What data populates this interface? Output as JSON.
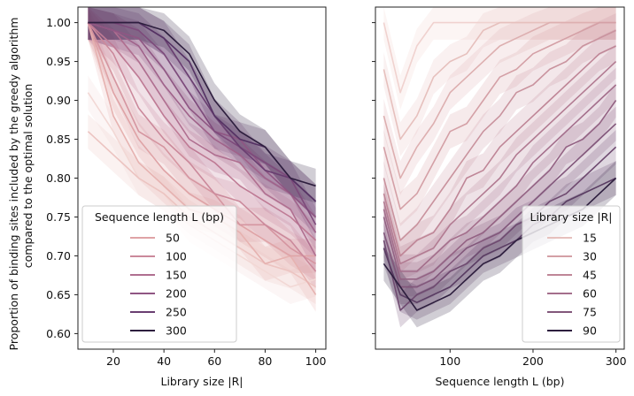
{
  "y_label_lines": [
    "Proportion of binding sites included by the greedy algorithm",
    "compared to the optimal solution"
  ],
  "chart_data": [
    {
      "type": "line",
      "panel": "left",
      "xlabel": "Library size |R|",
      "ylabel": "Proportion of binding sites included by the greedy algorithm compared to the optimal solution",
      "xlim": [
        6,
        104
      ],
      "ylim": [
        0.58,
        1.02
      ],
      "x_ticks": [
        20,
        40,
        60,
        80,
        100
      ],
      "y_ticks": [
        0.6,
        0.65,
        0.7,
        0.75,
        0.8,
        0.85,
        0.9,
        0.95,
        1.0
      ],
      "x": [
        10,
        20,
        30,
        40,
        50,
        60,
        70,
        80,
        90,
        100
      ],
      "legend": {
        "title": "Sequence length L (bp)",
        "placement": "lower-left"
      },
      "band_halfwidth": 0.022,
      "series": [
        {
          "name": "",
          "color": "#f2d8d5",
          "values": [
            0.91,
            0.86,
            0.8,
            0.78,
            0.74,
            0.72,
            0.7,
            0.68,
            0.66,
            0.67
          ]
        },
        {
          "name": "",
          "color": "#ecc4c1",
          "values": [
            0.86,
            0.83,
            0.8,
            0.78,
            0.75,
            0.73,
            0.71,
            0.69,
            0.68,
            0.66
          ]
        },
        {
          "name": "",
          "color": "#e6b2b0",
          "values": [
            1.0,
            0.88,
            0.82,
            0.79,
            0.76,
            0.75,
            0.73,
            0.69,
            0.7,
            0.65
          ]
        },
        {
          "name": "50",
          "color": "#dfa3a6",
          "values": [
            1.0,
            0.91,
            0.85,
            0.81,
            0.78,
            0.76,
            0.74,
            0.72,
            0.7,
            0.7
          ]
        },
        {
          "name": "",
          "color": "#d595a0",
          "values": [
            1.0,
            0.93,
            0.86,
            0.84,
            0.8,
            0.78,
            0.74,
            0.74,
            0.71,
            0.69
          ]
        },
        {
          "name": "100",
          "color": "#cb899b",
          "values": [
            1.0,
            0.96,
            0.89,
            0.85,
            0.82,
            0.78,
            0.77,
            0.74,
            0.72,
            0.68
          ]
        },
        {
          "name": "",
          "color": "#bf7b95",
          "values": [
            1.0,
            0.97,
            0.93,
            0.88,
            0.84,
            0.82,
            0.79,
            0.77,
            0.75,
            0.72
          ]
        },
        {
          "name": "150",
          "color": "#b06f90",
          "values": [
            1.0,
            0.99,
            0.95,
            0.9,
            0.85,
            0.83,
            0.82,
            0.78,
            0.76,
            0.7
          ]
        },
        {
          "name": "",
          "color": "#a0628a",
          "values": [
            1.0,
            0.99,
            0.97,
            0.92,
            0.88,
            0.85,
            0.83,
            0.8,
            0.78,
            0.73
          ]
        },
        {
          "name": "200",
          "color": "#8f5683",
          "values": [
            1.0,
            0.99,
            0.98,
            0.94,
            0.89,
            0.86,
            0.85,
            0.81,
            0.78,
            0.75
          ]
        },
        {
          "name": "",
          "color": "#7d4a7b",
          "values": [
            1.0,
            1.0,
            0.99,
            0.96,
            0.91,
            0.86,
            0.84,
            0.82,
            0.8,
            0.74
          ]
        },
        {
          "name": "250",
          "color": "#6a3e71",
          "values": [
            1.0,
            1.0,
            1.0,
            0.98,
            0.93,
            0.88,
            0.84,
            0.81,
            0.8,
            0.77
          ]
        },
        {
          "name": "",
          "color": "#553264",
          "values": [
            1.0,
            1.0,
            1.0,
            0.98,
            0.95,
            0.88,
            0.85,
            0.84,
            0.8,
            0.77
          ]
        },
        {
          "name": "300",
          "color": "#2d1e3e",
          "values": [
            1.0,
            1.0,
            1.0,
            0.99,
            0.96,
            0.9,
            0.86,
            0.84,
            0.8,
            0.79
          ]
        }
      ],
      "legend_entries": [
        {
          "label": "50",
          "color": "#dfa3a6"
        },
        {
          "label": "100",
          "color": "#cb899b"
        },
        {
          "label": "150",
          "color": "#b06f90"
        },
        {
          "label": "200",
          "color": "#8f5683"
        },
        {
          "label": "250",
          "color": "#6a3e71"
        },
        {
          "label": "300",
          "color": "#2d1e3e"
        }
      ]
    },
    {
      "type": "line",
      "panel": "right",
      "xlabel": "Sequence length L (bp)",
      "ylabel": "",
      "xlim": [
        10,
        310
      ],
      "ylim": [
        0.58,
        1.02
      ],
      "x_ticks": [
        100,
        200,
        300
      ],
      "y_ticks": [
        0.6,
        0.65,
        0.7,
        0.75,
        0.8,
        0.85,
        0.9,
        0.95,
        1.0
      ],
      "x": [
        20,
        40,
        60,
        80,
        100,
        120,
        140,
        160,
        180,
        200,
        220,
        240,
        260,
        280,
        300
      ],
      "legend": {
        "title": "Library size |R|",
        "placement": "lower-right"
      },
      "band_halfwidth": 0.022,
      "series": [
        {
          "name": "",
          "color": "#f0d2cf",
          "values": [
            1.0,
            0.91,
            0.97,
            1.0,
            1.0,
            1.0,
            1.0,
            1.0,
            1.0,
            1.0,
            1.0,
            1.0,
            1.0,
            1.0,
            1.0
          ]
        },
        {
          "name": "15",
          "color": "#e6c0bd",
          "values": [
            0.94,
            0.85,
            0.88,
            0.93,
            0.95,
            0.96,
            0.99,
            1.0,
            1.0,
            1.0,
            1.0,
            1.0,
            1.0,
            1.0,
            1.0
          ]
        },
        {
          "name": "",
          "color": "#ddafb0",
          "values": [
            0.88,
            0.8,
            0.84,
            0.87,
            0.91,
            0.93,
            0.95,
            0.97,
            0.98,
            0.99,
            1.0,
            1.0,
            1.0,
            1.0,
            1.0
          ]
        },
        {
          "name": "30",
          "color": "#d4a0a6",
          "values": [
            0.84,
            0.76,
            0.78,
            0.82,
            0.86,
            0.87,
            0.9,
            0.93,
            0.94,
            0.96,
            0.97,
            0.98,
            0.99,
            1.0,
            1.0
          ]
        },
        {
          "name": "",
          "color": "#c9939e",
          "values": [
            0.8,
            0.72,
            0.74,
            0.77,
            0.8,
            0.83,
            0.86,
            0.88,
            0.91,
            0.92,
            0.94,
            0.95,
            0.97,
            0.98,
            0.99
          ]
        },
        {
          "name": "45",
          "color": "#bf8697",
          "values": [
            0.78,
            0.7,
            0.72,
            0.73,
            0.76,
            0.8,
            0.81,
            0.84,
            0.86,
            0.88,
            0.9,
            0.92,
            0.94,
            0.96,
            0.97
          ]
        },
        {
          "name": "",
          "color": "#b27b92",
          "values": [
            0.77,
            0.69,
            0.7,
            0.71,
            0.74,
            0.76,
            0.78,
            0.8,
            0.83,
            0.85,
            0.87,
            0.89,
            0.91,
            0.93,
            0.95
          ]
        },
        {
          "name": "60",
          "color": "#a46f8c",
          "values": [
            0.76,
            0.68,
            0.68,
            0.7,
            0.72,
            0.73,
            0.75,
            0.77,
            0.79,
            0.82,
            0.84,
            0.86,
            0.88,
            0.9,
            0.92
          ]
        },
        {
          "name": "",
          "color": "#946384",
          "values": [
            0.75,
            0.67,
            0.67,
            0.68,
            0.7,
            0.72,
            0.73,
            0.75,
            0.77,
            0.79,
            0.81,
            0.84,
            0.85,
            0.87,
            0.9
          ]
        },
        {
          "name": "75",
          "color": "#82577b",
          "values": [
            0.73,
            0.66,
            0.66,
            0.67,
            0.69,
            0.71,
            0.72,
            0.73,
            0.75,
            0.77,
            0.79,
            0.81,
            0.83,
            0.85,
            0.87
          ]
        },
        {
          "name": "",
          "color": "#6f4a70",
          "values": [
            0.72,
            0.63,
            0.65,
            0.66,
            0.68,
            0.69,
            0.71,
            0.72,
            0.74,
            0.75,
            0.77,
            0.78,
            0.8,
            0.82,
            0.84
          ]
        },
        {
          "name": "",
          "color": "#5a3d63",
          "values": [
            0.71,
            0.65,
            0.64,
            0.65,
            0.66,
            0.68,
            0.7,
            0.71,
            0.72,
            0.74,
            0.75,
            0.77,
            0.78,
            0.79,
            0.8
          ]
        },
        {
          "name": "90",
          "color": "#2d1e3e",
          "values": [
            0.69,
            0.66,
            0.63,
            0.64,
            0.65,
            0.67,
            0.69,
            0.7,
            0.72,
            0.73,
            0.74,
            0.75,
            0.76,
            0.78,
            0.8
          ]
        }
      ],
      "legend_entries": [
        {
          "label": "15",
          "color": "#e6c0bd"
        },
        {
          "label": "30",
          "color": "#d4a0a6"
        },
        {
          "label": "45",
          "color": "#bf8697"
        },
        {
          "label": "60",
          "color": "#a46f8c"
        },
        {
          "label": "75",
          "color": "#82577b"
        },
        {
          "label": "90",
          "color": "#2d1e3e"
        }
      ]
    }
  ]
}
